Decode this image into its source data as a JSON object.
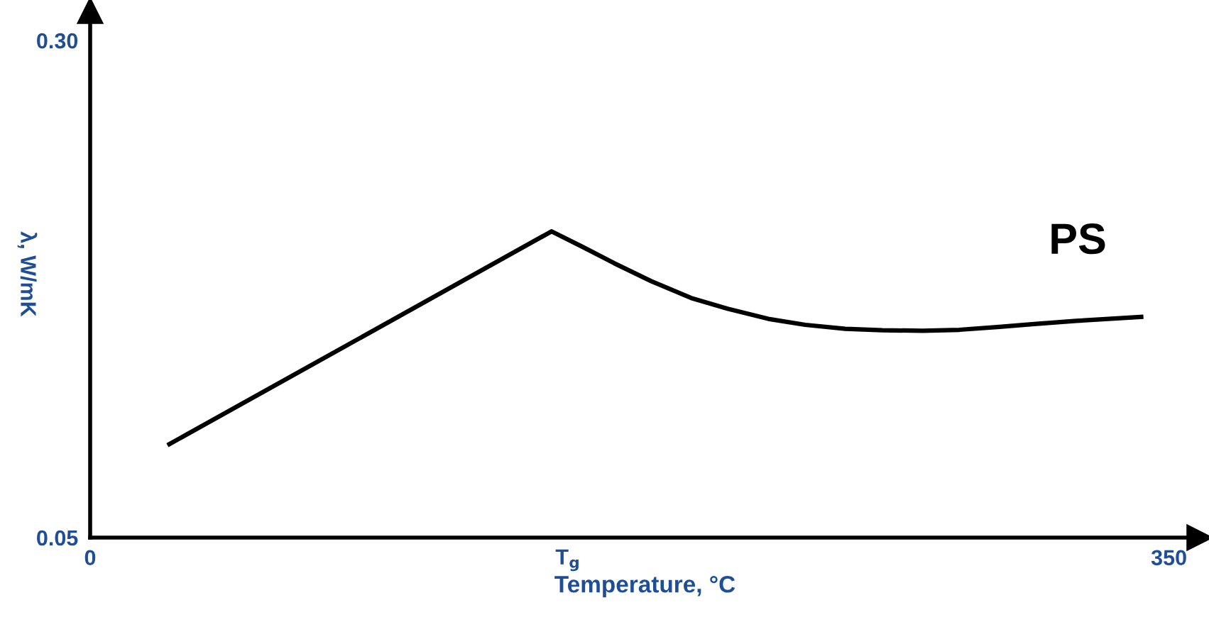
{
  "chart_data": {
    "type": "line",
    "xlabel": "Temperature, °C",
    "ylabel": "λ, W/mK",
    "x": [
      25.7,
      149.7,
      160,
      170,
      182,
      195,
      207,
      220,
      232,
      245,
      257,
      270,
      282,
      295,
      307,
      320,
      341
    ],
    "series": [
      {
        "color": "#000000",
        "values": [
          0.097,
          0.204,
          0.196,
          0.188,
          0.179,
          0.1705,
          0.165,
          0.16,
          0.157,
          0.155,
          0.1543,
          0.154,
          0.1545,
          0.156,
          0.1575,
          0.159,
          0.161
        ]
      }
    ],
    "xlim": [
      0,
      360
    ],
    "ylim": [
      0.05,
      0.315
    ],
    "xticks": [
      0,
      {
        "value": 155,
        "label": "T$_{g}$"
      },
      350
    ],
    "yticks": [
      0.05,
      {
        "value": 0.3,
        "label": "0.30"
      }
    ],
    "annotations": [
      "PS"
    ],
    "grid": false,
    "legend": false,
    "marker": "none",
    "line_style": "solid"
  }
}
